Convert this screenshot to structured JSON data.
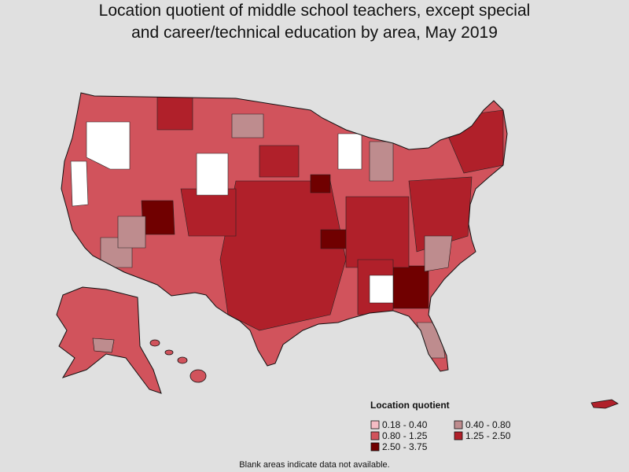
{
  "title_lines": [
    "Location quotient of middle school teachers, except special",
    "and career/technical education by area, May 2019"
  ],
  "legend": {
    "title": "Location quotient",
    "items": [
      {
        "label": "0.18 - 0.40",
        "color": "#f4bcc4"
      },
      {
        "label": "0.40 - 0.80",
        "color": "#be8c8e"
      },
      {
        "label": "0.80 - 1.25",
        "color": "#d1535c"
      },
      {
        "label": "1.25 - 2.50",
        "color": "#b0202a"
      },
      {
        "label": "2.50 - 3.75",
        "color": "#700000"
      }
    ]
  },
  "footnote": "Blank areas indicate data not available."
}
